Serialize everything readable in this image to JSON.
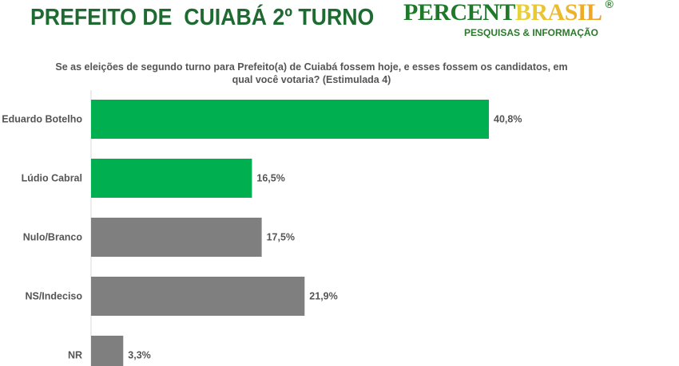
{
  "header": {
    "title": "PREFEITO DE  CUIABÁ 2º TURNO"
  },
  "logo": {
    "part1": "PERCENT",
    "part2": "BRASIL",
    "registered": "®",
    "tagline": "PESQUISAS & INFORMAÇÃO"
  },
  "chart_data": {
    "type": "bar",
    "orientation": "horizontal",
    "title": "Se as eleições de segundo turno para Prefeito(a) de Cuiabá fossem hoje, e esses fossem os candidatos, em qual você votaria? (Estimulada 4)",
    "categories": [
      "Eduardo Botelho",
      "Lúdio Cabral",
      "Nulo/Branco",
      "NS/Indeciso",
      "NR"
    ],
    "values": [
      40.8,
      16.5,
      17.5,
      21.9,
      3.3
    ],
    "data_labels": [
      "40,8%",
      "16,5%",
      "17,5%",
      "21,9%",
      "3,3%"
    ],
    "colors": [
      "#00b050",
      "#00b050",
      "#7f7f7f",
      "#7f7f7f",
      "#7f7f7f"
    ],
    "grid": false
  }
}
